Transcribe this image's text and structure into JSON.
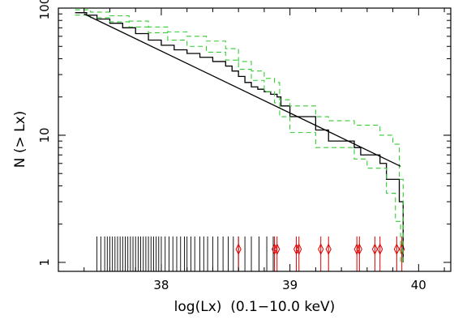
{
  "chart_data": {
    "type": "line",
    "title": "",
    "xlabel": "log(Lx)  (0.1−10.0 keV)",
    "ylabel": "N (> Lx)",
    "xlim": [
      37.2,
      40.25
    ],
    "ylim": [
      0.85,
      100
    ],
    "yscale": "log",
    "x_ticks": [
      38,
      39,
      40
    ],
    "x_tick_labels": [
      "38",
      "39",
      "40"
    ],
    "y_ticks": [
      1,
      10,
      100
    ],
    "y_tick_labels": [
      "1",
      "10",
      "100"
    ],
    "grid": false,
    "legend": "none",
    "colors": {
      "data": "#000000",
      "bounds": "#33cc33",
      "marks": "#dd0000",
      "model": "#000000"
    },
    "series": [
      {
        "style": "step",
        "color": "#000000",
        "x": [
          37.33,
          37.42,
          37.5,
          37.6,
          37.7,
          37.8,
          37.9,
          38.0,
          38.1,
          38.2,
          38.3,
          38.4,
          38.5,
          38.55,
          38.6,
          38.65,
          38.7,
          38.75,
          38.8,
          38.85,
          38.9,
          38.93,
          39.0,
          39.2,
          39.3,
          39.5,
          39.55,
          39.7,
          39.75,
          39.85,
          39.88
        ],
        "y": [
          92,
          88,
          82,
          76,
          70,
          63,
          56,
          51,
          47,
          44,
          41,
          38,
          35,
          32,
          29,
          26,
          24,
          23,
          22,
          21,
          20,
          17,
          14,
          11,
          9,
          8,
          7,
          6,
          4.5,
          3,
          1
        ]
      },
      {
        "style": "step",
        "color": "#33cc33",
        "dashed": true,
        "x": [
          37.33,
          37.45,
          37.6,
          37.75,
          37.9,
          38.05,
          38.2,
          38.35,
          38.5,
          38.6,
          38.7,
          38.8,
          38.88,
          38.92,
          39.0,
          39.2,
          39.3,
          39.5,
          39.7,
          39.8,
          39.85,
          39.88
        ],
        "y": [
          97,
          93,
          87,
          79,
          71,
          65,
          60,
          55,
          48,
          38,
          32,
          28,
          26,
          19,
          17,
          14,
          13,
          12,
          10,
          8.5,
          4.5,
          1
        ]
      },
      {
        "style": "step",
        "color": "#33cc33",
        "dashed": true,
        "x": [
          37.33,
          37.45,
          37.6,
          37.75,
          37.9,
          38.05,
          38.2,
          38.35,
          38.5,
          38.6,
          38.7,
          38.8,
          38.88,
          38.92,
          39.0,
          39.2,
          39.5,
          39.6,
          39.75,
          39.82,
          39.86
        ],
        "y": [
          88,
          84,
          78,
          71,
          64,
          56,
          50,
          45,
          39,
          33,
          27,
          22,
          18,
          14,
          10.5,
          8,
          6.5,
          5.5,
          3.5,
          2.1,
          1
        ]
      },
      {
        "style": "line",
        "color": "#000000",
        "x": [
          37.4,
          39.86
        ],
        "y": [
          90,
          5.7
        ]
      }
    ],
    "marks": {
      "y_top": 1.6,
      "black_x": [
        37.5,
        37.53,
        37.56,
        37.58,
        37.6,
        37.62,
        37.64,
        37.66,
        37.68,
        37.7,
        37.72,
        37.74,
        37.76,
        37.78,
        37.8,
        37.82,
        37.84,
        37.86,
        37.88,
        37.9,
        37.92,
        37.94,
        37.96,
        37.98,
        38.0,
        38.03,
        38.06,
        38.09,
        38.12,
        38.15,
        38.18,
        38.2,
        38.23,
        38.26,
        38.3,
        38.33,
        38.36,
        38.4,
        38.44,
        38.48,
        38.52,
        38.56,
        38.6,
        38.65,
        38.7,
        38.76,
        38.82,
        38.87
      ],
      "red_x": [
        38.6,
        38.88,
        38.9,
        39.05,
        39.07,
        39.24,
        39.3,
        39.52,
        39.54,
        39.66,
        39.7,
        39.83,
        39.87
      ],
      "red_diamond_y": 1.27
    }
  }
}
